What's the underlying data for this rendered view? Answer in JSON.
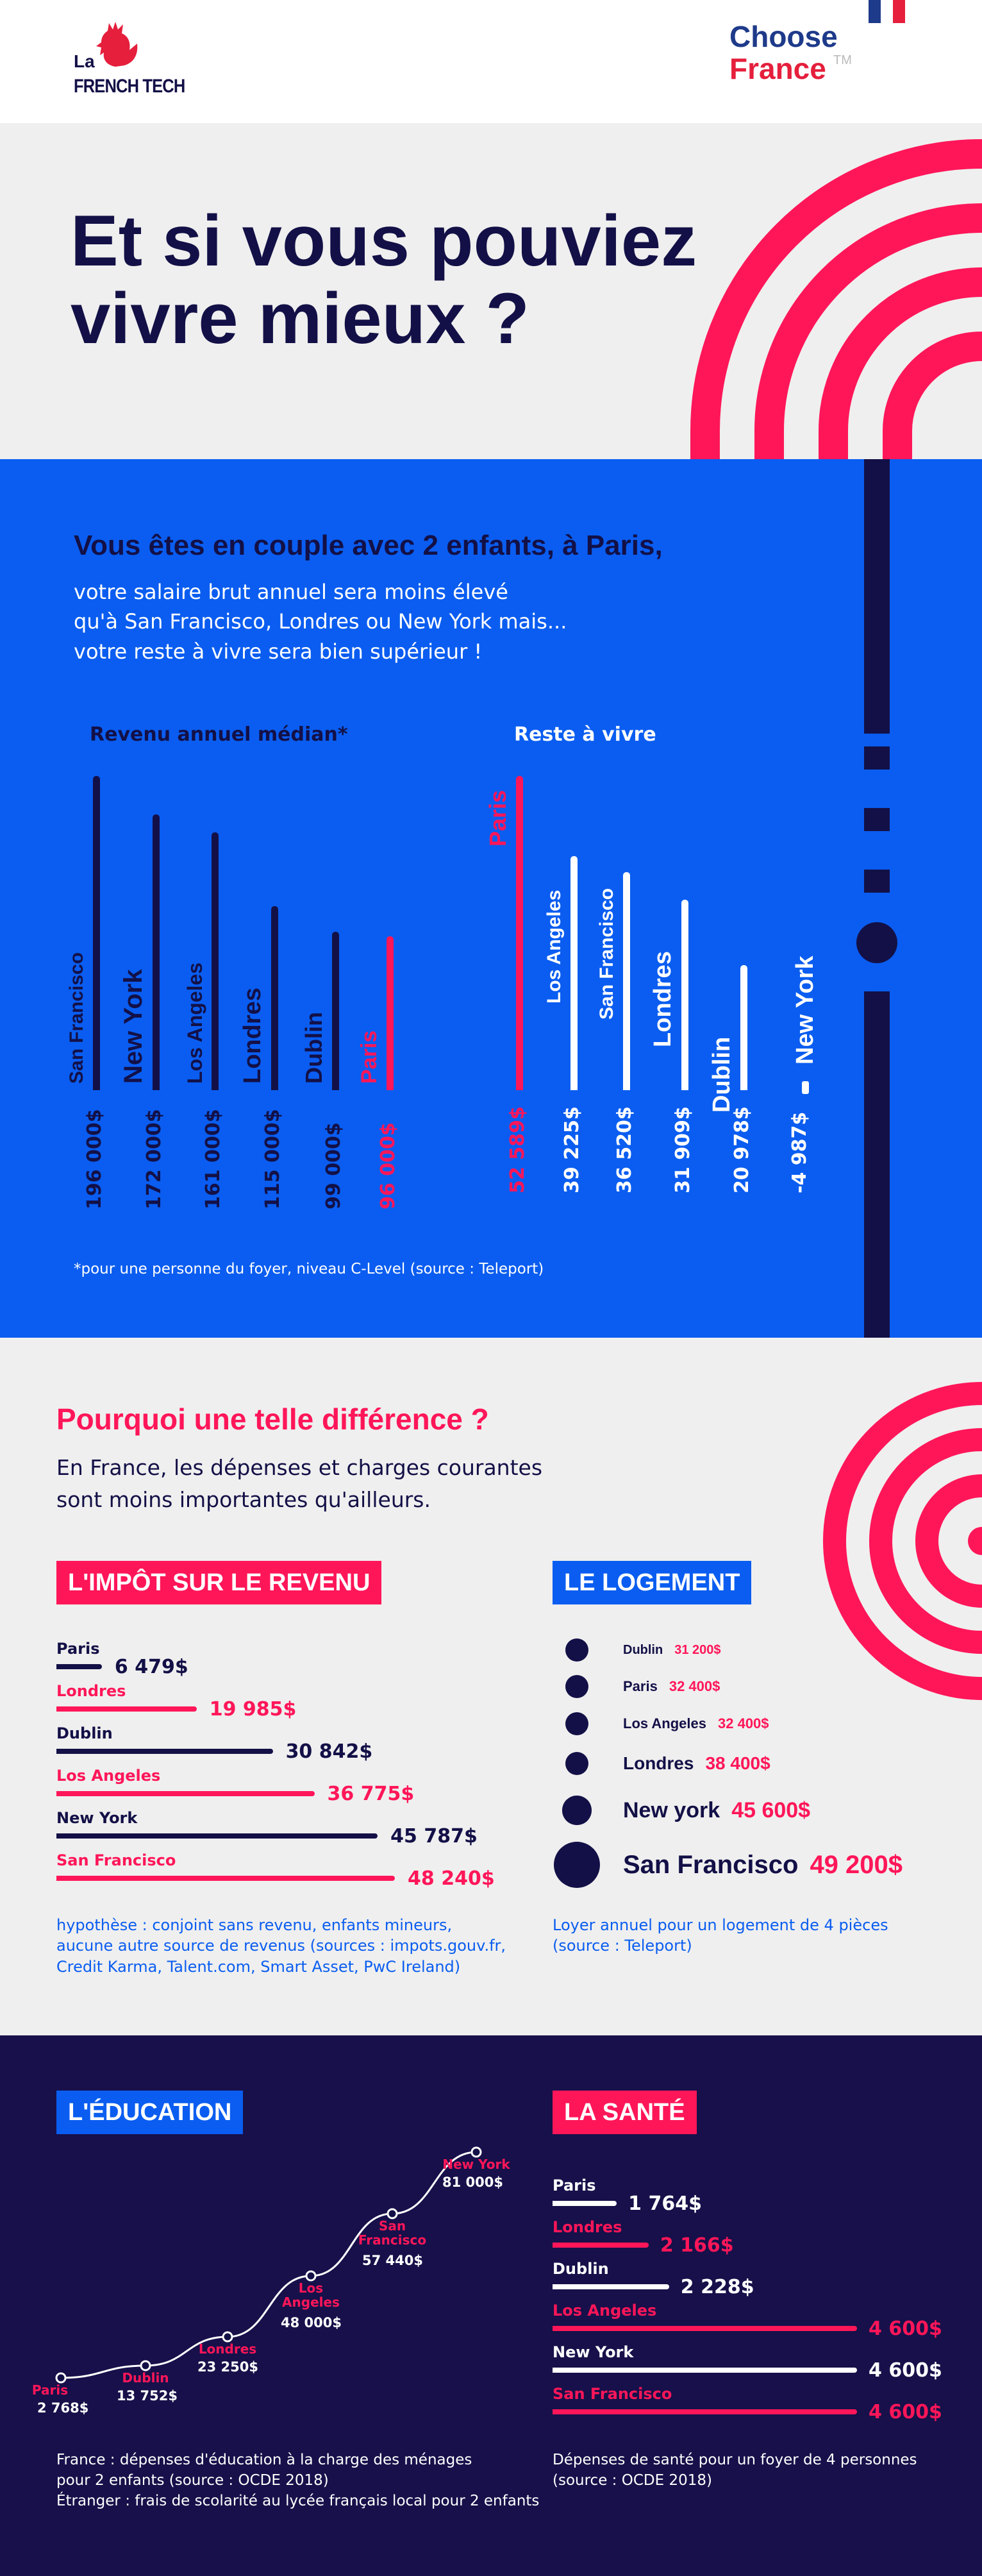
{
  "brand": {
    "la": "La",
    "frenchtech": "FRENCH TECH",
    "choose": "Choose",
    "france": "France",
    "tm": "TM"
  },
  "hero": {
    "title_line1": "Et si vous pouviez",
    "title_line2": "vivre mieux ?"
  },
  "intro": {
    "headline": "Vous êtes en couple avec 2 enfants, à Paris,",
    "line1": "votre salaire brut annuel sera moins élevé",
    "line2": "qu'à San Francisco, Londres ou New York mais...",
    "line3": "votre reste à vivre sera bien supérieur !",
    "footnote": "*pour une personne du foyer, niveau C-Level (source : Teleport)"
  },
  "chart_data": [
    {
      "type": "bar",
      "title": "Revenu annuel médian*",
      "categories": [
        "San Francisco",
        "New York",
        "Los Angeles",
        "Londres",
        "Dublin",
        "Paris"
      ],
      "values": [
        196000,
        172000,
        161000,
        115000,
        99000,
        96000
      ],
      "value_labels": [
        "196 000$",
        "172 000$",
        "161 000$",
        "115 000$",
        "99 000$",
        "96 000$"
      ],
      "highlight": "Paris"
    },
    {
      "type": "bar",
      "title": "Reste à vivre",
      "categories": [
        "Paris",
        "Los Angeles",
        "San Francisco",
        "Londres",
        "Dublin",
        "New York"
      ],
      "values": [
        52589,
        39225,
        36520,
        31909,
        20978,
        -4987
      ],
      "value_labels": [
        "52 589$",
        "39 225$",
        "36 520$",
        "31 909$",
        "20 978$",
        "-4 987$"
      ],
      "highlight": "Paris"
    },
    {
      "type": "bar",
      "title": "L'IMPÔT SUR LE REVENU",
      "categories": [
        "Paris",
        "Londres",
        "Dublin",
        "Los Angeles",
        "New York",
        "San Francisco"
      ],
      "values": [
        6479,
        19985,
        30842,
        36775,
        45787,
        48240
      ],
      "value_labels": [
        "6 479$",
        "19 985$",
        "30 842$",
        "36 775$",
        "45 787$",
        "48 240$"
      ],
      "colors": [
        "#131047",
        "#ff1659",
        "#131047",
        "#ff1659",
        "#131047",
        "#ff1659"
      ]
    },
    {
      "type": "scatter",
      "title": "LE LOGEMENT",
      "categories": [
        "Dublin",
        "Paris",
        "Los Angeles",
        "Londres",
        "New york",
        "San Francisco"
      ],
      "values": [
        31200,
        32400,
        32400,
        38400,
        45600,
        49200
      ],
      "value_labels": [
        "31 200$",
        "32 400$",
        "32 400$",
        "38 400$",
        "45 600$",
        "49 200$"
      ]
    },
    {
      "type": "line",
      "title": "L'ÉDUCATION",
      "categories": [
        "Paris",
        "Dublin",
        "Londres",
        "Los Angeles",
        "San Francisco",
        "New York"
      ],
      "values": [
        2768,
        13752,
        23250,
        48000,
        57440,
        81000
      ],
      "value_labels": [
        "2 768$",
        "13 752$",
        "23 250$",
        "48 000$",
        "57 440$",
        "81 000$"
      ]
    },
    {
      "type": "bar",
      "title": "LA SANTÉ",
      "categories": [
        "Paris",
        "Londres",
        "Dublin",
        "Los Angeles",
        "New York",
        "San Francisco"
      ],
      "values": [
        1764,
        2166,
        2228,
        4600,
        4600,
        4600
      ],
      "value_labels": [
        "1 764$",
        "2 166$",
        "2 228$",
        "4 600$",
        "4 600$",
        "4 600$"
      ],
      "colors": [
        "#ffffff",
        "#ff1659",
        "#ffffff",
        "#ff1659",
        "#ffffff",
        "#ff1659"
      ]
    }
  ],
  "why": {
    "title": "Pourquoi une telle différence ?",
    "line1": "En France, les dépenses et charges courantes",
    "line2": "sont moins importantes qu'ailleurs."
  },
  "notes": {
    "tax1": "hypothèse : conjoint sans revenu, enfants mineurs,",
    "tax2": "aucune autre source de revenus (sources : impots.gouv.fr,",
    "tax3": "Credit Karma, Talent.com, Smart Asset, PwC Ireland)",
    "housing1": "Loyer annuel pour un logement de 4 pièces",
    "housing2": "(source : Teleport)",
    "edu1": "France : dépenses d'éducation à la charge des ménages",
    "edu2": "pour 2 enfants (source : OCDE 2018)",
    "edu3": "Étranger : frais de scolarité au lycée français local pour 2 enfants",
    "health1": "Dépenses de santé pour un foyer de 4 personnes",
    "health2": "(source : OCDE 2018)"
  },
  "colors": {
    "navy": "#131047",
    "pink": "#ff1659",
    "blue": "#0a5df0",
    "grey": "#efefef"
  }
}
